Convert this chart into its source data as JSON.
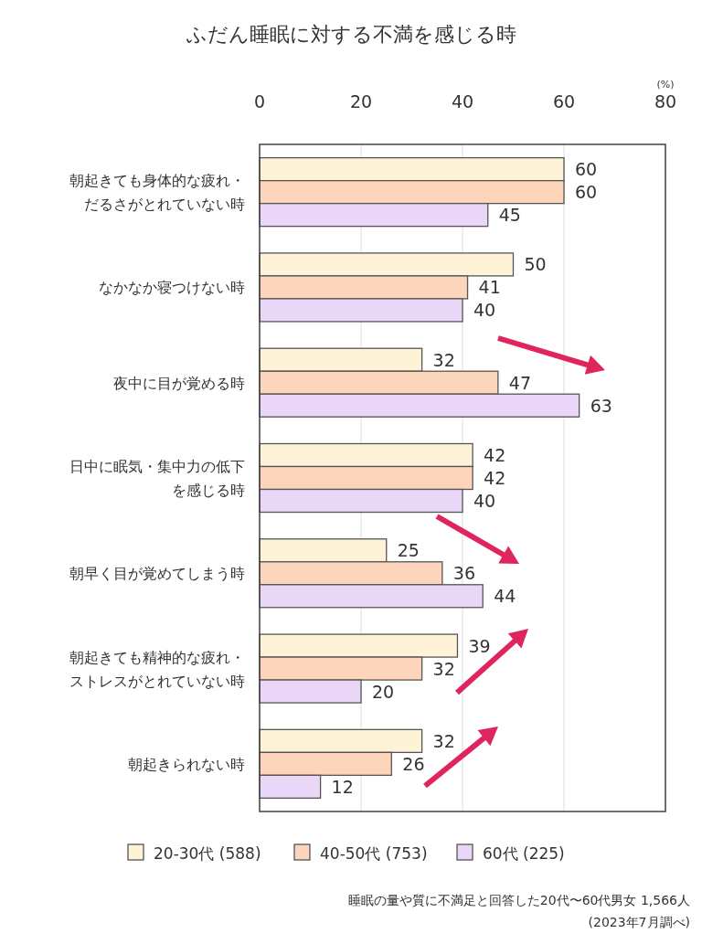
{
  "chart_data": {
    "type": "bar",
    "orientation": "horizontal",
    "title": "ふだん睡眠に対する不満を感じる時",
    "xlabel": "(%)",
    "categories": [
      "朝起きても身体的な疲れ・だるさがとれていない時",
      "なかなか寝つけない時",
      "夜中に目が覚める時",
      "日中に眠気・集中力の低下を感じる時",
      "朝早く目が覚めてしまう時",
      "朝起きても精神的な疲れ・ストレスがとれていない時",
      "朝起きられない時"
    ],
    "series": [
      {
        "name": "20-30代 (588)",
        "color": "#fef3d6",
        "values": [
          60,
          50,
          32,
          42,
          25,
          39,
          32
        ]
      },
      {
        "name": "40-50代 (753)",
        "color": "#fdd5bb",
        "values": [
          60,
          41,
          47,
          42,
          36,
          32,
          26
        ]
      },
      {
        "name": "60代 (225)",
        "color": "#ead7f7",
        "values": [
          45,
          40,
          63,
          40,
          44,
          20,
          12
        ]
      }
    ],
    "xlim": [
      0,
      80
    ],
    "xticks": [
      0,
      20,
      40,
      60,
      80
    ],
    "grid": "x",
    "legend": "bottom",
    "data_labels": true,
    "annotations": [
      "睡眠の量や質に不満足と回答した20代〜60代男女 1,566人",
      "(2023年7月調べ)"
    ]
  }
}
